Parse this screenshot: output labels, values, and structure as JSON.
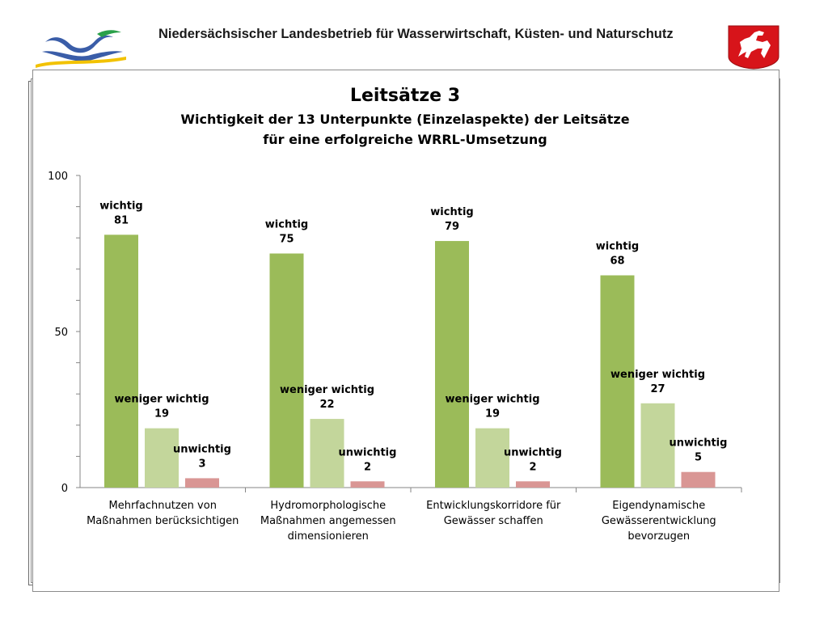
{
  "header": {
    "agency": "Niedersächsischer Landesbetrieb für Wasserwirtschaft, Küsten- und Naturschutz",
    "logo_icon": "nlwkn-wave-logo-icon",
    "crest_icon": "lower-saxony-horse-crest-icon"
  },
  "colors": {
    "wichtig": "#9bbb59",
    "weniger_wichtig": "#c3d69b",
    "unwichtig": "#d99694",
    "axis": "#868686",
    "text": "#000000"
  },
  "chart_data": {
    "type": "bar",
    "title": "Leitsätze 3",
    "subtitle_lines": [
      "Wichtigkeit der 13 Unterpunkte (Einzelaspekte) der Leitsätze",
      "für eine erfolgreiche WRRL-Umsetzung"
    ],
    "categories": [
      [
        "Mehrfachnutzen von",
        "Maßnahmen berücksichtigen"
      ],
      [
        "Hydromorphologische",
        "Maßnahmen angemessen",
        "dimensionieren"
      ],
      [
        "Entwicklungskorridore für",
        "Gewässer schaffen"
      ],
      [
        "Eigendynamische",
        "Gewässerentwicklung",
        "bevorzugen"
      ]
    ],
    "series": [
      {
        "name": "wichtig",
        "values": [
          81,
          75,
          79,
          68
        ]
      },
      {
        "name": "weniger wichtig",
        "values": [
          19,
          22,
          19,
          27
        ]
      },
      {
        "name": "unwichtig",
        "values": [
          3,
          2,
          2,
          5
        ]
      }
    ],
    "ylim": [
      0,
      100
    ],
    "yticks": [
      0,
      50,
      100
    ],
    "grid": false,
    "legend": "none"
  }
}
